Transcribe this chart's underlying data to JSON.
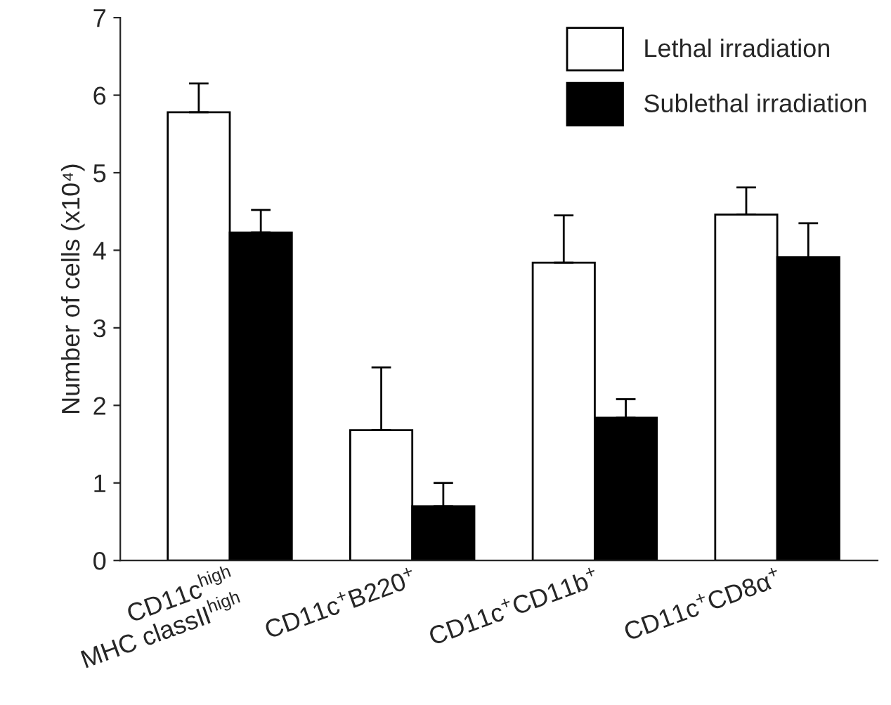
{
  "chart_data": {
    "type": "bar",
    "ylabel": "Number of cells (x10⁴)",
    "categories": [
      "CD11c$^{high}$\nMHC classII$^{high}$",
      "CD11c$^{+}$B220$^{+}$",
      "CD11c$^{+}$CD11b$^{+}$",
      "CD11c$^{+}$CD8α$^{+}$"
    ],
    "series": [
      {
        "name": "Lethal irradiation",
        "color": "#ffffff",
        "values": [
          5.78,
          1.68,
          3.84,
          4.46
        ],
        "errors": [
          [
            5.78,
            6.15
          ],
          [
            1.68,
            2.49
          ],
          [
            3.84,
            4.45
          ],
          [
            4.46,
            4.81
          ]
        ]
      },
      {
        "name": "Sublethal irradiation",
        "color": "#000000",
        "values": [
          4.23,
          0.7,
          1.84,
          3.91
        ],
        "errors": [
          [
            4.23,
            4.52
          ],
          [
            0.7,
            1.0
          ],
          [
            1.84,
            2.08
          ],
          [
            3.91,
            4.35
          ]
        ]
      }
    ],
    "ylim": [
      0,
      7
    ],
    "yticks": [
      0,
      1,
      2,
      3,
      4,
      5,
      6,
      7
    ],
    "grid": false,
    "legend": "top right"
  }
}
